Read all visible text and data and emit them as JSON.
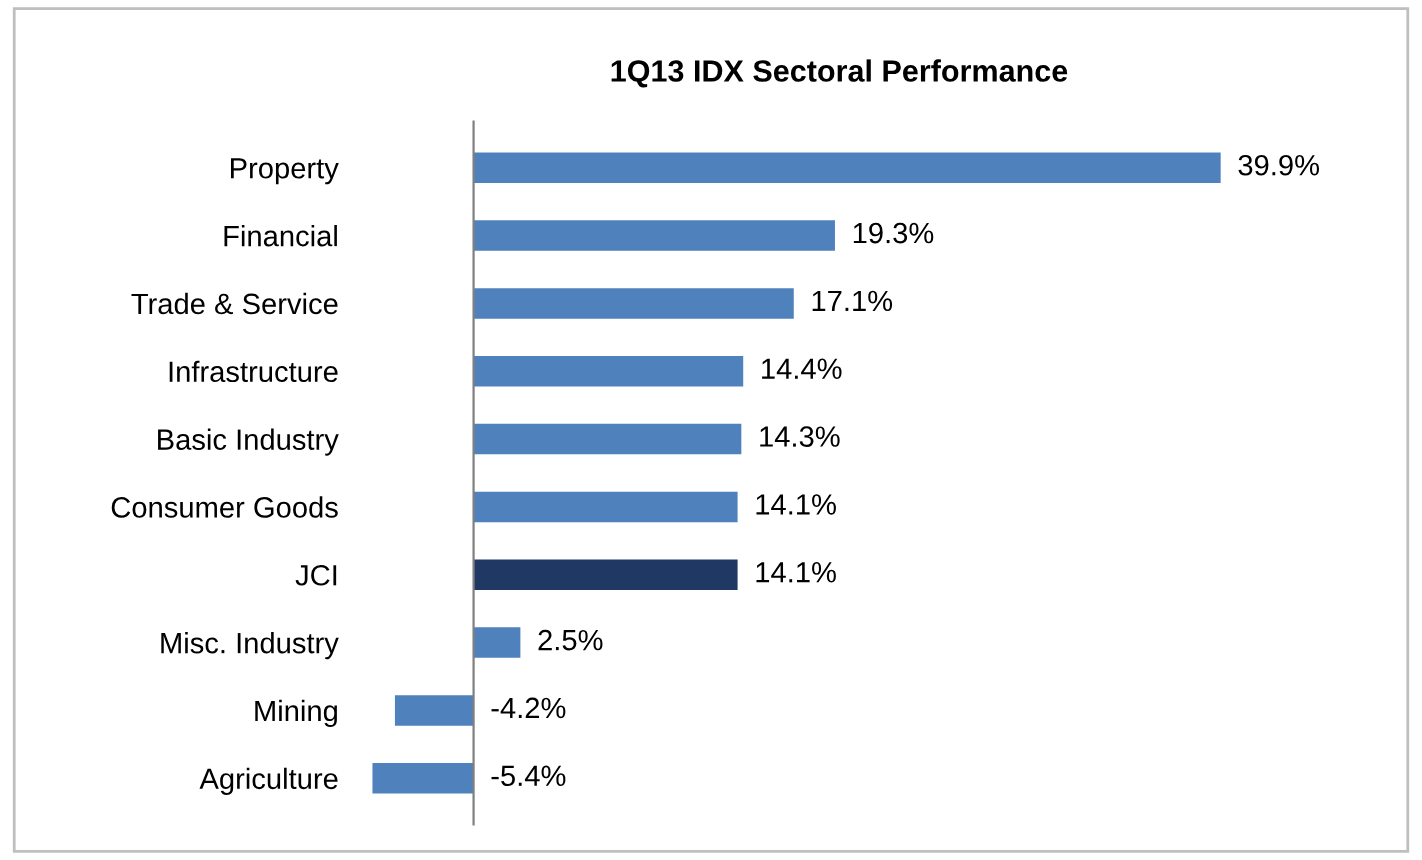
{
  "chart_data": {
    "type": "bar",
    "orientation": "horizontal",
    "title": "1Q13 IDX Sectoral Performance",
    "categories": [
      "Property",
      "Financial",
      "Trade & Service",
      "Infrastructure",
      "Basic Industry",
      "Consumer Goods",
      "JCI",
      "Misc. Industry",
      "Mining",
      "Agriculture"
    ],
    "values": [
      39.9,
      19.3,
      17.1,
      14.4,
      14.3,
      14.1,
      14.1,
      2.5,
      -4.2,
      -5.4
    ],
    "value_labels": [
      "39.9%",
      "19.3%",
      "17.1%",
      "14.4%",
      "14.3%",
      "14.1%",
      "14.1%",
      "2.5%",
      "-4.2%",
      "-5.4%"
    ],
    "colors": [
      "#4f81bd",
      "#4f81bd",
      "#4f81bd",
      "#4f81bd",
      "#4f81bd",
      "#4f81bd",
      "#1f3864",
      "#4f81bd",
      "#4f81bd",
      "#4f81bd"
    ],
    "grid": false,
    "legend": false
  }
}
